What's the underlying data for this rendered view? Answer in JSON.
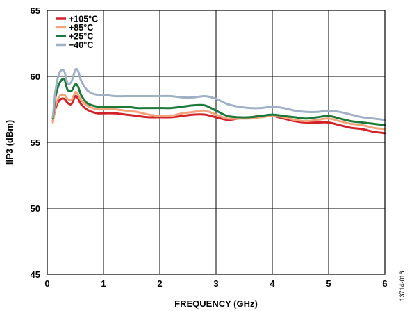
{
  "chart_data": {
    "type": "line",
    "title": "",
    "xlabel": "FREQUENCY (GHz)",
    "ylabel": "IIP3 (dBm)",
    "xlim": [
      0,
      6
    ],
    "ylim": [
      45,
      65
    ],
    "xticks": [
      0,
      1,
      2,
      3,
      4,
      5,
      6
    ],
    "yticks": [
      45,
      50,
      55,
      60,
      65
    ],
    "grid": true,
    "legend_position": "top-left",
    "figure_id": "13714-016",
    "series": [
      {
        "name": "+105°C",
        "color": "#d2232a",
        "x": [
          0.1,
          0.15,
          0.22,
          0.3,
          0.36,
          0.43,
          0.5,
          0.55,
          0.6,
          0.7,
          0.8,
          0.9,
          1.0,
          1.2,
          1.4,
          1.6,
          1.8,
          2.0,
          2.2,
          2.4,
          2.6,
          2.8,
          3.0,
          3.2,
          3.4,
          3.6,
          3.8,
          4.0,
          4.2,
          4.4,
          4.6,
          4.8,
          5.0,
          5.2,
          5.4,
          5.6,
          5.8,
          6.0
        ],
        "y": [
          56.6,
          57.6,
          58.2,
          58.3,
          58.0,
          57.9,
          58.5,
          58.3,
          57.9,
          57.5,
          57.3,
          57.2,
          57.2,
          57.2,
          57.1,
          57.0,
          56.9,
          56.9,
          56.9,
          57.0,
          57.1,
          57.1,
          56.9,
          56.7,
          56.8,
          56.9,
          57.0,
          57.0,
          56.8,
          56.6,
          56.5,
          56.5,
          56.5,
          56.3,
          56.1,
          56.0,
          55.8,
          55.7
        ]
      },
      {
        "name": "+85°C",
        "color": "#f4a47a",
        "x": [
          0.1,
          0.15,
          0.22,
          0.3,
          0.36,
          0.43,
          0.5,
          0.55,
          0.6,
          0.7,
          0.8,
          0.9,
          1.0,
          1.2,
          1.4,
          1.6,
          1.8,
          2.0,
          2.2,
          2.4,
          2.6,
          2.8,
          3.0,
          3.2,
          3.4,
          3.6,
          3.8,
          4.0,
          4.2,
          4.4,
          4.6,
          4.8,
          5.0,
          5.2,
          5.4,
          5.6,
          5.8,
          6.0
        ],
        "y": [
          56.5,
          57.8,
          58.5,
          58.6,
          58.3,
          58.2,
          58.8,
          58.6,
          58.2,
          57.8,
          57.6,
          57.5,
          57.5,
          57.5,
          57.4,
          57.3,
          57.1,
          57.0,
          57.0,
          57.2,
          57.3,
          57.4,
          57.1,
          56.8,
          56.8,
          56.8,
          56.9,
          57.0,
          56.9,
          56.7,
          56.6,
          56.7,
          56.8,
          56.6,
          56.4,
          56.3,
          56.1,
          56.0
        ]
      },
      {
        "name": "+25°C",
        "color": "#1b7a3a",
        "x": [
          0.1,
          0.15,
          0.22,
          0.3,
          0.36,
          0.43,
          0.5,
          0.55,
          0.6,
          0.7,
          0.8,
          0.9,
          1.0,
          1.2,
          1.4,
          1.6,
          1.8,
          2.0,
          2.2,
          2.4,
          2.6,
          2.8,
          3.0,
          3.2,
          3.4,
          3.6,
          3.8,
          4.0,
          4.2,
          4.4,
          4.6,
          4.8,
          5.0,
          5.2,
          5.4,
          5.6,
          5.8,
          6.0
        ],
        "y": [
          56.8,
          58.5,
          59.5,
          59.8,
          59.0,
          58.9,
          59.4,
          59.2,
          58.6,
          58.0,
          57.8,
          57.7,
          57.7,
          57.7,
          57.7,
          57.6,
          57.6,
          57.6,
          57.6,
          57.7,
          57.8,
          57.8,
          57.4,
          57.0,
          56.9,
          56.9,
          57.0,
          57.1,
          57.0,
          56.9,
          56.8,
          56.9,
          57.0,
          56.8,
          56.6,
          56.5,
          56.4,
          56.3
        ]
      },
      {
        "name": "−40°C",
        "color": "#9fb0c7",
        "x": [
          0.1,
          0.15,
          0.22,
          0.3,
          0.36,
          0.43,
          0.5,
          0.55,
          0.6,
          0.7,
          0.8,
          0.9,
          1.0,
          1.2,
          1.4,
          1.6,
          1.8,
          2.0,
          2.2,
          2.4,
          2.6,
          2.8,
          3.0,
          3.2,
          3.4,
          3.6,
          3.8,
          4.0,
          4.2,
          4.4,
          4.6,
          4.8,
          5.0,
          5.2,
          5.4,
          5.6,
          5.8,
          6.0
        ],
        "y": [
          56.9,
          59.0,
          60.3,
          60.4,
          59.5,
          59.6,
          60.5,
          60.4,
          59.7,
          59.0,
          58.7,
          58.6,
          58.6,
          58.5,
          58.5,
          58.5,
          58.5,
          58.5,
          58.5,
          58.4,
          58.4,
          58.5,
          58.3,
          57.9,
          57.7,
          57.6,
          57.6,
          57.7,
          57.6,
          57.4,
          57.3,
          57.3,
          57.4,
          57.3,
          57.1,
          56.9,
          56.8,
          56.7
        ]
      }
    ]
  }
}
